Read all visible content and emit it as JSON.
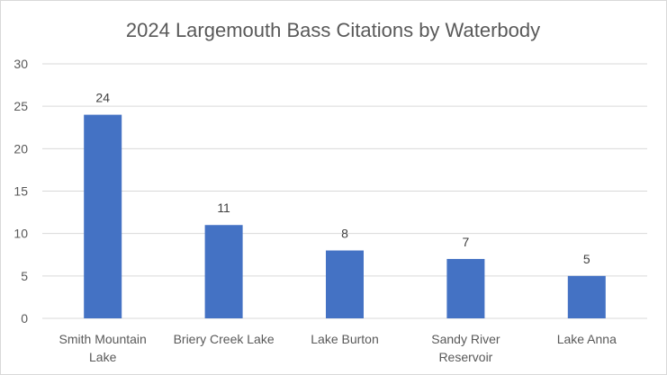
{
  "chart_data": {
    "type": "bar",
    "title": "2024 Largemouth Bass Citations by Waterbody",
    "xlabel": "",
    "ylabel": "",
    "categories": [
      [
        "Smith Mountain",
        "Lake"
      ],
      [
        "Briery Creek Lake"
      ],
      [
        "Lake Burton"
      ],
      [
        "Sandy River",
        "Reservoir"
      ],
      [
        "Lake Anna"
      ]
    ],
    "values": [
      24,
      11,
      8,
      7,
      5
    ],
    "data_labels": [
      "24",
      "11",
      "8",
      "7",
      "5"
    ],
    "ylim": [
      0,
      30
    ],
    "yticks": [
      0,
      5,
      10,
      15,
      20,
      25,
      30
    ],
    "ytick_labels": [
      "0",
      "5",
      "10",
      "15",
      "20",
      "25",
      "30"
    ],
    "grid": true,
    "legend": "none",
    "colors": {
      "bar": "#4472c4",
      "grid": "#d9d9d9",
      "text": "#595959"
    }
  }
}
